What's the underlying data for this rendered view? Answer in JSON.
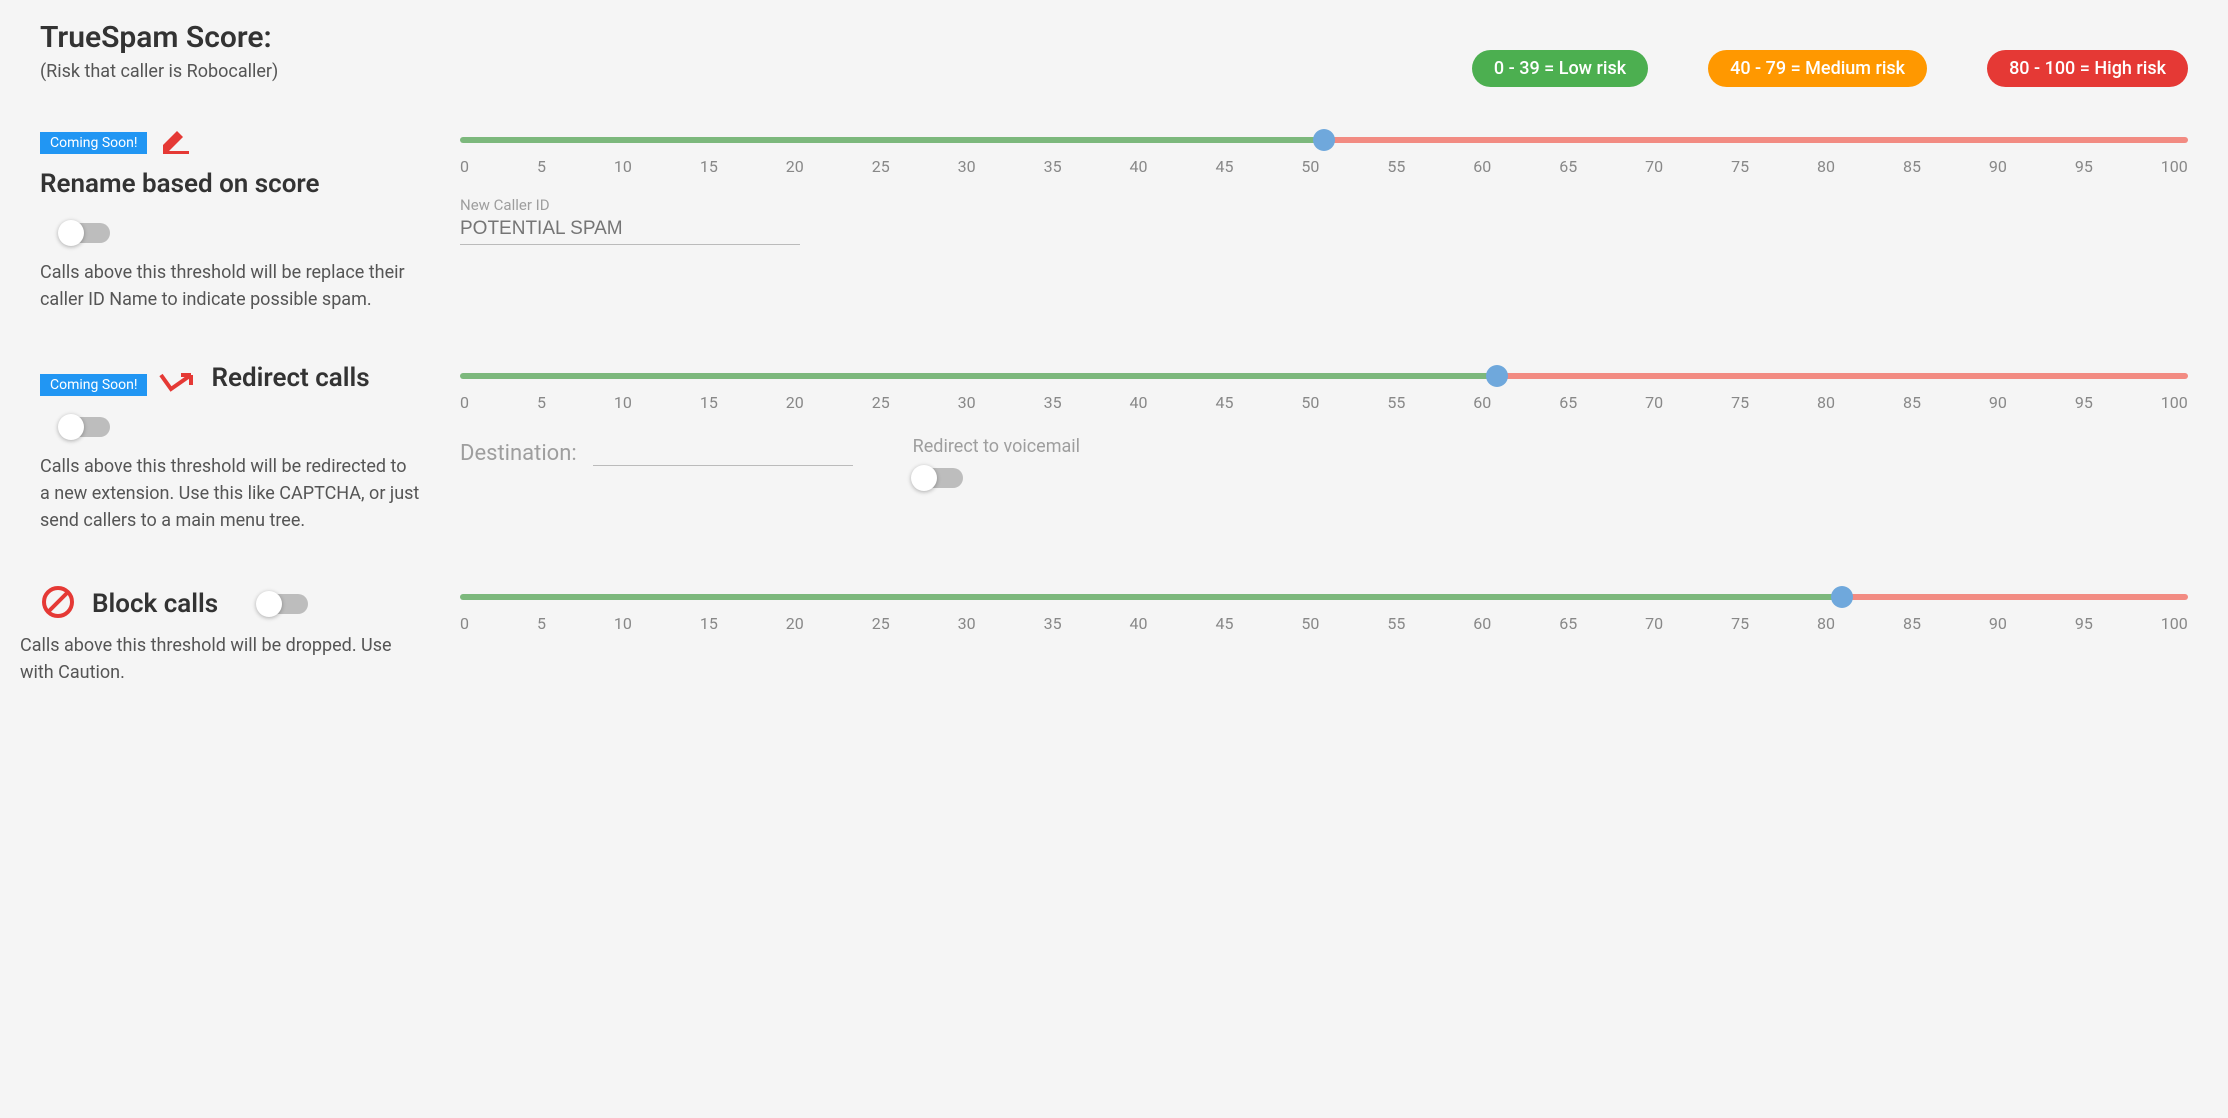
{
  "title": "TrueSpam Score:",
  "subtitle": "(Risk that caller is Robocaller)",
  "legend": [
    {
      "label": "0 - 39 = Low risk",
      "color": "#4caf50"
    },
    {
      "label": "40 - 79 = Medium risk",
      "color": "#ff9800"
    },
    {
      "label": "80 - 100 = High risk",
      "color": "#e53935"
    }
  ],
  "ticks": [
    "0",
    "5",
    "10",
    "15",
    "20",
    "25",
    "30",
    "35",
    "40",
    "45",
    "50",
    "55",
    "60",
    "65",
    "70",
    "75",
    "80",
    "85",
    "90",
    "95",
    "100"
  ],
  "slider": {
    "track_green": "#7cb87c",
    "track_red": "#f28b82",
    "thumb_color": "#6fa8dc"
  },
  "sections": {
    "rename": {
      "badge": "Coming Soon!",
      "title": "Rename based on score",
      "toggle_on": false,
      "desc": "Calls above this threshold will be replace their caller ID Name to indicate possible spam.",
      "threshold": 50,
      "caller_id_label": "New Caller ID",
      "caller_id_value": "POTENTIAL SPAM"
    },
    "redirect": {
      "badge": "Coming Soon!",
      "title": "Redirect calls",
      "toggle_on": false,
      "desc": "Calls above this threshold will be redirected to a new extension. Use this like CAPTCHA, or just send callers to a main menu tree.",
      "threshold": 60,
      "destination_label": "Destination:",
      "destination_value": "",
      "voicemail_label": "Redirect to voicemail",
      "voicemail_on": false
    },
    "block": {
      "title": "Block calls",
      "toggle_on": false,
      "desc": "Calls above this threshold will be dropped. Use with Caution.",
      "threshold": 80
    }
  },
  "colors": {
    "badge_bg": "#2196f3",
    "block_icon": "#e53935",
    "edit_icon": "#e53935",
    "redirect_icon": "#e53935"
  }
}
